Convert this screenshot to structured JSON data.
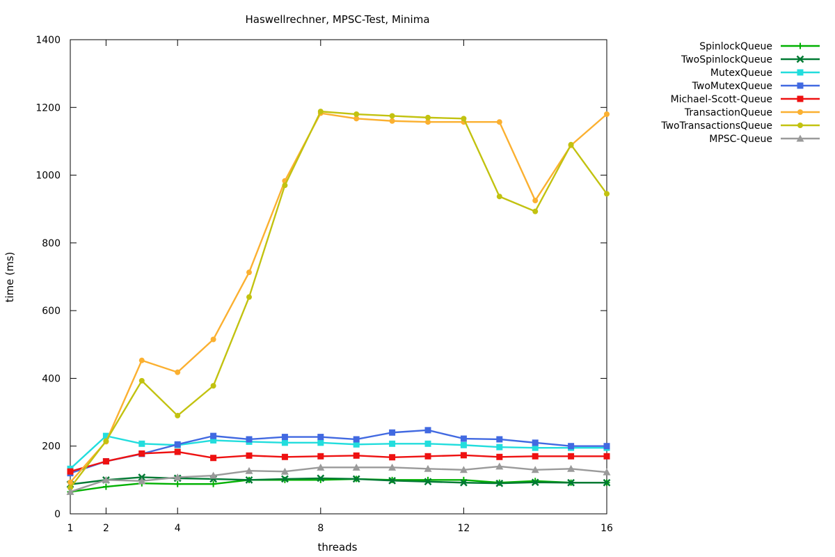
{
  "chart_data": {
    "type": "line",
    "title": "Haswellrechner, MPSC-Test, Minima",
    "xlabel": "threads",
    "ylabel": "time (ms)",
    "xlim": [
      1,
      16
    ],
    "ylim": [
      0,
      1400
    ],
    "xticks": [
      1,
      2,
      4,
      8,
      12,
      16
    ],
    "yticks": [
      0,
      200,
      400,
      600,
      800,
      1000,
      1200,
      1400
    ],
    "grid": false,
    "legend_position": "top-right outside",
    "x": [
      1,
      2,
      3,
      4,
      5,
      6,
      7,
      8,
      9,
      10,
      11,
      12,
      13,
      14,
      15,
      16
    ],
    "series": [
      {
        "name": "SpinlockQueue",
        "color": "#00b000",
        "marker": "plus",
        "values": [
          65,
          80,
          90,
          88,
          88,
          100,
          100,
          100,
          103,
          100,
          100,
          100,
          92,
          97,
          92,
          92
        ]
      },
      {
        "name": "TwoSpinlockQueue",
        "color": "#007a33",
        "marker": "cross",
        "values": [
          87,
          100,
          108,
          105,
          103,
          100,
          103,
          105,
          103,
          98,
          95,
          92,
          90,
          93,
          92,
          92
        ]
      },
      {
        "name": "MutexQueue",
        "color": "#22dddd",
        "marker": "square",
        "values": [
          133,
          230,
          207,
          203,
          217,
          213,
          210,
          210,
          205,
          207,
          207,
          203,
          197,
          195,
          195,
          195
        ]
      },
      {
        "name": "TwoMutexQueue",
        "color": "#4169e1",
        "marker": "square",
        "values": [
          120,
          155,
          177,
          205,
          230,
          220,
          227,
          227,
          220,
          240,
          247,
          222,
          220,
          210,
          200,
          200
        ]
      },
      {
        "name": "Michael-Scott-Queue",
        "color": "#ee1111",
        "marker": "square",
        "values": [
          125,
          155,
          178,
          183,
          165,
          172,
          168,
          170,
          172,
          167,
          170,
          173,
          168,
          170,
          170,
          170
        ]
      },
      {
        "name": "TransactionQueue",
        "color": "#fbb030",
        "marker": "circle",
        "values": [
          93,
          213,
          453,
          418,
          515,
          713,
          983,
          1183,
          1167,
          1160,
          1157,
          1157,
          1157,
          925,
          1088,
          1180
        ]
      },
      {
        "name": "TwoTransactionsQueue",
        "color": "#c2c210",
        "marker": "circle",
        "values": [
          77,
          215,
          393,
          290,
          378,
          640,
          970,
          1188,
          1180,
          1175,
          1170,
          1167,
          937,
          893,
          1090,
          945
        ]
      },
      {
        "name": "MPSC-Queue",
        "color": "#9a9a9a",
        "marker": "triangle",
        "values": [
          65,
          100,
          97,
          108,
          113,
          127,
          125,
          137,
          137,
          137,
          133,
          130,
          140,
          130,
          133,
          123
        ]
      }
    ]
  }
}
